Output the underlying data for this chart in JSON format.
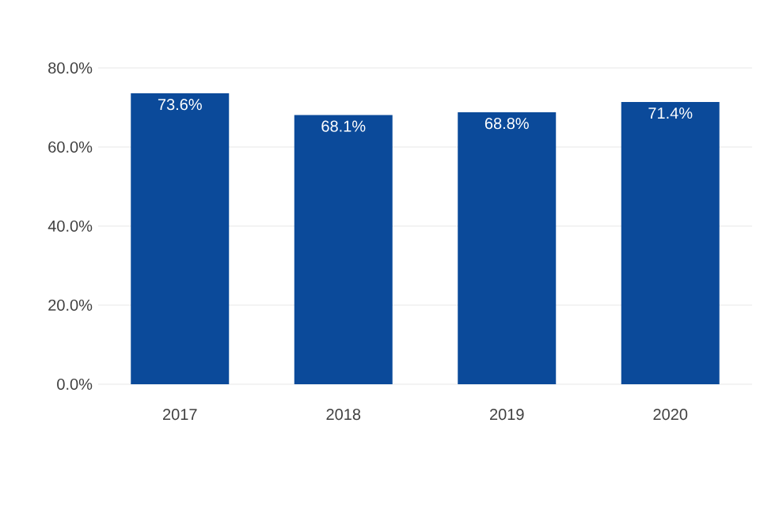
{
  "chart_data": {
    "type": "bar",
    "categories": [
      "2017",
      "2018",
      "2019",
      "2020"
    ],
    "values": [
      73.6,
      68.1,
      68.8,
      71.4
    ],
    "value_labels": [
      "73.6%",
      "68.1%",
      "68.8%",
      "71.4%"
    ],
    "color": "#0b4a9a",
    "ylim": [
      0,
      80
    ],
    "yticks": [
      {
        "value": 0,
        "label": "0.0%"
      },
      {
        "value": 20,
        "label": "20.0%"
      },
      {
        "value": 40,
        "label": "40.0%"
      },
      {
        "value": 60,
        "label": "60.0%"
      },
      {
        "value": 80,
        "label": "80.0%"
      }
    ],
    "grid": "y"
  }
}
